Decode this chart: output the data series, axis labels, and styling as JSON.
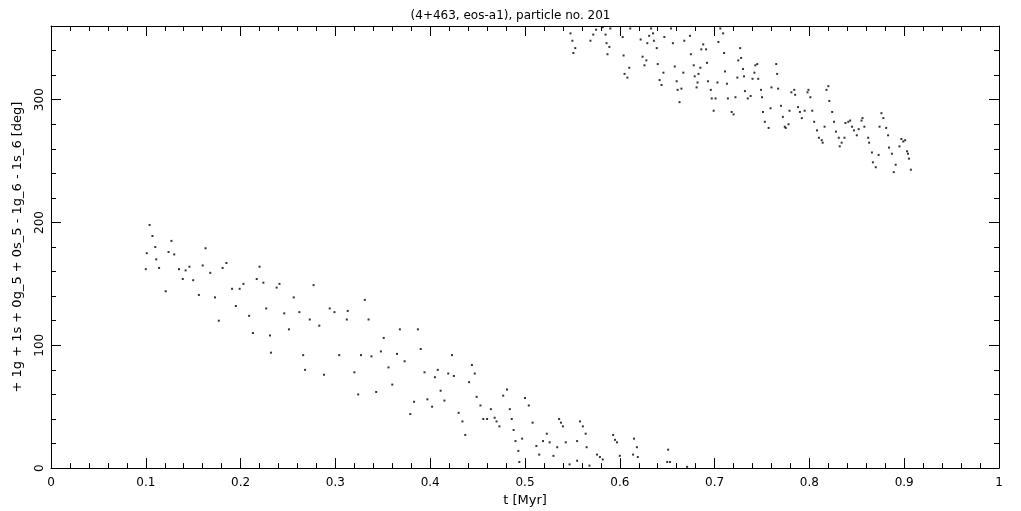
{
  "chart_data": {
    "type": "scatter",
    "title": "(4+463, eos-a1), particle no. 201",
    "xlabel": "t [Myr]",
    "ylabel": "+ 1g + 1s + 0g_5 + 0s_5 - 1g_6 - 1s_6 [deg]",
    "xlim": [
      0,
      1
    ],
    "xticks": [
      0,
      0.1,
      0.2,
      0.3,
      0.4,
      0.5,
      0.6,
      0.7,
      0.8,
      0.9,
      1
    ],
    "ylim": [
      0,
      360
    ],
    "yticks": [
      0,
      100,
      200,
      300
    ],
    "marker": "square",
    "series": [
      {
        "color": "#000000",
        "x": [
          0.1,
          0.101,
          0.104,
          0.107,
          0.11,
          0.111,
          0.114,
          0.121,
          0.124,
          0.127,
          0.13,
          0.135,
          0.139,
          0.142,
          0.146,
          0.15,
          0.156,
          0.16,
          0.163,
          0.168,
          0.173,
          0.177,
          0.181,
          0.185,
          0.191,
          0.195,
          0.199,
          0.203,
          0.209,
          0.213,
          0.217,
          0.22,
          0.224,
          0.227,
          0.231,
          0.232,
          0.238,
          0.241,
          0.246,
          0.251,
          0.256,
          0.262,
          0.266,
          0.268,
          0.273,
          0.277,
          0.283,
          0.288,
          0.294,
          0.299,
          0.304,
          0.312,
          0.313,
          0.32,
          0.324,
          0.327,
          0.331,
          0.335,
          0.338,
          0.343,
          0.348,
          0.351,
          0.356,
          0.36,
          0.365,
          0.368,
          0.373,
          0.379,
          0.383,
          0.387,
          0.39,
          0.394,
          0.397,
          0.402,
          0.405,
          0.408,
          0.411,
          0.415,
          0.419,
          0.423,
          0.425,
          0.43,
          0.434,
          0.437,
          0.441,
          0.444,
          0.447,
          0.449,
          0.453,
          0.456,
          0.46,
          0.464,
          0.468,
          0.47,
          0.473,
          0.477,
          0.481,
          0.484,
          0.486,
          0.488,
          0.49,
          0.493,
          0.494,
          0.497,
          0.5,
          0.504,
          0.508,
          0.512,
          0.515,
          0.519,
          0.523,
          0.526,
          0.53,
          0.534,
          0.536,
          0.538,
          0.54,
          0.543,
          0.547,
          0.555,
          0.555,
          0.558,
          0.561,
          0.564,
          0.565,
          0.568,
          0.576,
          0.579,
          0.582,
          0.593,
          0.595,
          0.597,
          0.6,
          0.614,
          0.615,
          0.618,
          0.619,
          0.65,
          0.651,
          0.653,
          0.671,
          0.548,
          0.55,
          0.551,
          0.553,
          0.569,
          0.572,
          0.575,
          0.582,
          0.585,
          0.586,
          0.587,
          0.589,
          0.59,
          0.603,
          0.604,
          0.605,
          0.608,
          0.61,
          0.611,
          0.622,
          0.624,
          0.626,
          0.628,
          0.629,
          0.631,
          0.633,
          0.635,
          0.636,
          0.639,
          0.64,
          0.642,
          0.644,
          0.646,
          0.647,
          0.654,
          0.656,
          0.658,
          0.66,
          0.661,
          0.663,
          0.665,
          0.667,
          0.668,
          0.674,
          0.675,
          0.678,
          0.679,
          0.681,
          0.682,
          0.683,
          0.685,
          0.686,
          0.688,
          0.691,
          0.692,
          0.693,
          0.696,
          0.697,
          0.699,
          0.701,
          0.703,
          0.704,
          0.706,
          0.709,
          0.71,
          0.711,
          0.713,
          0.714,
          0.718,
          0.72,
          0.722,
          0.724,
          0.725,
          0.727,
          0.728,
          0.73,
          0.731,
          0.732,
          0.735,
          0.738,
          0.74,
          0.742,
          0.743,
          0.745,
          0.746,
          0.749,
          0.75,
          0.751,
          0.753,
          0.757,
          0.759,
          0.76,
          0.765,
          0.766,
          0.767,
          0.77,
          0.772,
          0.774,
          0.775,
          0.778,
          0.779,
          0.781,
          0.784,
          0.785,
          0.788,
          0.79,
          0.792,
          0.795,
          0.798,
          0.799,
          0.801,
          0.803,
          0.805,
          0.808,
          0.81,
          0.813,
          0.814,
          0.816,
          0.818,
          0.82,
          0.821,
          0.824,
          0.826,
          0.828,
          0.831,
          0.832,
          0.834,
          0.837,
          0.838,
          0.841,
          0.843,
          0.845,
          0.847,
          0.85,
          0.852,
          0.855,
          0.856,
          0.858,
          0.862,
          0.863,
          0.866,
          0.867,
          0.87,
          0.873,
          0.874,
          0.876,
          0.878,
          0.881,
          0.883,
          0.884,
          0.887,
          0.889,
          0.891,
          0.895,
          0.897,
          0.899,
          0.901,
          0.903,
          0.904,
          0.905,
          0.907
        ],
        "values": [
          162,
          175,
          198,
          189,
          180,
          170,
          163,
          144,
          176,
          185,
          174,
          162,
          154,
          161,
          164,
          153,
          141,
          165,
          179,
          159,
          139,
          120,
          163,
          167,
          146,
          132,
          146,
          150,
          124,
          110,
          154,
          164,
          151,
          130,
          108,
          94,
          147,
          150,
          126,
          113,
          139,
          127,
          92,
          80,
          121,
          149,
          116,
          76,
          130,
          127,
          92,
          121,
          128,
          78,
          60,
          92,
          137,
          121,
          91,
          62,
          95,
          106,
          82,
          68,
          93,
          113,
          87,
          44,
          54,
          113,
          97,
          78,
          56,
          50,
          74,
          80,
          63,
          55,
          77,
          92,
          75,
          45,
          38,
          27,
          70,
          84,
          77,
          58,
          51,
          40,
          40,
          48,
          41,
          38,
          34,
          59,
          64,
          48,
          40,
          31,
          22,
          14,
          5,
          24,
          57,
          51,
          37,
          18,
          11,
          22,
          28,
          21,
          10,
          17,
          40,
          37,
          34,
          21,
          3,
          6,
          22,
          38,
          34,
          28,
          17,
          2,
          11,
          9,
          7,
          27,
          23,
          21,
          10,
          11,
          24,
          17,
          9,
          5,
          15,
          5,
          1,
          354,
          348,
          338,
          342,
          348,
          353,
          357,
          359,
          353,
          346,
          337,
          343,
          358,
          351,
          336,
          321,
          318,
          326,
          358,
          349,
          335,
          328,
          332,
          346,
          352,
          358,
          354,
          348,
          342,
          329,
          316,
          312,
          322,
          351,
          358,
          346,
          327,
          315,
          308,
          298,
          309,
          322,
          348,
          352,
          337,
          328,
          319,
          310,
          314,
          321,
          326,
          341,
          345,
          341,
          330,
          315,
          308,
          301,
          291,
          301,
          314,
          347,
          358,
          354,
          338,
          323,
          313,
          301,
          290,
          288,
          302,
          318,
          332,
          342,
          334,
          325,
          319,
          307,
          301,
          303,
          317,
          322,
          328,
          329,
          317,
          308,
          302,
          290,
          282,
          277,
          293,
          310,
          329,
          321,
          309,
          295,
          286,
          278,
          277,
          280,
          291,
          306,
          308,
          304,
          294,
          290,
          285,
          291,
          306,
          308,
          302,
          291,
          282,
          275,
          269,
          267,
          265,
          278,
          308,
          311,
          299,
          290,
          282,
          274,
          269,
          262,
          265,
          269,
          281,
          282,
          283,
          278,
          275,
          271,
          276,
          283,
          285,
          278,
          269,
          265,
          257,
          249,
          245,
          255,
          278,
          289,
          285,
          277,
          271,
          261,
          256,
          241,
          247,
          262,
          268,
          266,
          267,
          258,
          256,
          252,
          243
        ]
      }
    ]
  }
}
